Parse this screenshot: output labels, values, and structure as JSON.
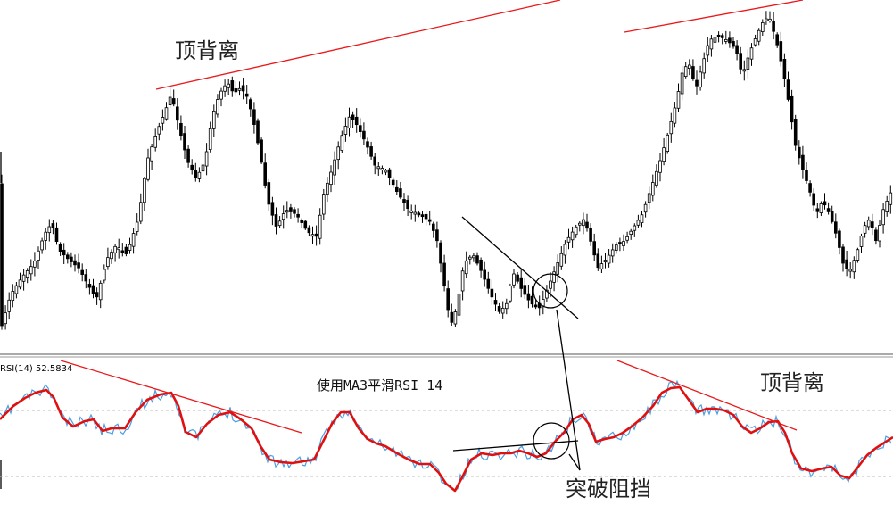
{
  "labels": {
    "price_divergence": "顶背离",
    "rsi_divergence": "顶背离",
    "breakout": "突破阻挡",
    "rsi_panel_title": "使用MA3平滑RSI 14",
    "rsi_indicator": "RSI(14) 52.5834"
  },
  "colors": {
    "background": "#ffffff",
    "candle": "#000000",
    "divergence_line": "#e8191b",
    "rsi_line": "#4a9ee0",
    "rsi_ma_line": "#e11010",
    "separator": "#555555",
    "level_line": "#bbbbbb",
    "annotation": "#000000"
  },
  "chart_data": [
    {
      "type": "candlestick",
      "title": "",
      "ohlc": [],
      "close_path": [
        [
          0,
          372
        ],
        [
          12,
          330
        ],
        [
          25,
          310
        ],
        [
          38,
          295
        ],
        [
          50,
          262
        ],
        [
          58,
          250
        ],
        [
          66,
          280
        ],
        [
          78,
          292
        ],
        [
          88,
          300
        ],
        [
          98,
          318
        ],
        [
          108,
          335
        ],
        [
          120,
          290
        ],
        [
          130,
          275
        ],
        [
          142,
          285
        ],
        [
          155,
          245
        ],
        [
          165,
          180
        ],
        [
          175,
          150
        ],
        [
          185,
          125
        ],
        [
          192,
          105
        ],
        [
          200,
          140
        ],
        [
          210,
          180
        ],
        [
          220,
          200
        ],
        [
          230,
          180
        ],
        [
          238,
          130
        ],
        [
          246,
          105
        ],
        [
          255,
          92
        ],
        [
          262,
          105
        ],
        [
          270,
          98
        ],
        [
          278,
          110
        ],
        [
          285,
          140
        ],
        [
          292,
          175
        ],
        [
          300,
          225
        ],
        [
          310,
          255
        ],
        [
          320,
          235
        ],
        [
          332,
          240
        ],
        [
          345,
          260
        ],
        [
          355,
          265
        ],
        [
          362,
          220
        ],
        [
          372,
          190
        ],
        [
          382,
          155
        ],
        [
          392,
          130
        ],
        [
          400,
          140
        ],
        [
          410,
          160
        ],
        [
          420,
          185
        ],
        [
          432,
          190
        ],
        [
          445,
          215
        ],
        [
          458,
          235
        ],
        [
          470,
          240
        ],
        [
          482,
          248
        ],
        [
          490,
          270
        ],
        [
          498,
          320
        ],
        [
          505,
          365
        ],
        [
          512,
          345
        ],
        [
          520,
          295
        ],
        [
          530,
          285
        ],
        [
          540,
          305
        ],
        [
          550,
          330
        ],
        [
          560,
          350
        ],
        [
          568,
          340
        ],
        [
          575,
          305
        ],
        [
          585,
          325
        ],
        [
          595,
          340
        ],
        [
          605,
          345
        ],
        [
          615,
          320
        ],
        [
          625,
          295
        ],
        [
          635,
          270
        ],
        [
          645,
          255
        ],
        [
          655,
          245
        ],
        [
          662,
          270
        ],
        [
          670,
          300
        ],
        [
          680,
          290
        ],
        [
          690,
          275
        ],
        [
          700,
          270
        ],
        [
          710,
          255
        ],
        [
          720,
          240
        ],
        [
          730,
          210
        ],
        [
          740,
          180
        ],
        [
          750,
          145
        ],
        [
          758,
          115
        ],
        [
          765,
          80
        ],
        [
          772,
          70
        ],
        [
          780,
          100
        ],
        [
          788,
          70
        ],
        [
          795,
          45
        ],
        [
          805,
          40
        ],
        [
          815,
          45
        ],
        [
          825,
          55
        ],
        [
          832,
          85
        ],
        [
          840,
          60
        ],
        [
          848,
          40
        ],
        [
          855,
          25
        ],
        [
          862,
          18
        ],
        [
          870,
          45
        ],
        [
          878,
          80
        ],
        [
          885,
          120
        ],
        [
          892,
          165
        ],
        [
          900,
          190
        ],
        [
          908,
          215
        ],
        [
          915,
          240
        ],
        [
          922,
          225
        ],
        [
          930,
          240
        ],
        [
          938,
          265
        ],
        [
          945,
          295
        ],
        [
          952,
          305
        ],
        [
          960,
          285
        ],
        [
          968,
          255
        ],
        [
          975,
          245
        ],
        [
          982,
          270
        ],
        [
          990,
          235
        ],
        [
          1001,
          210
        ]
      ],
      "resistance_lines": [
        {
          "name": "price_top_divergence",
          "from": [
            175,
            100
          ],
          "to": [
            628,
            0
          ]
        },
        {
          "name": "price_top_divergence_2",
          "from": [
            700,
            36
          ],
          "to": [
            900,
            0
          ]
        },
        {
          "name": "breakout_trendline",
          "from": [
            518,
            243
          ],
          "to": [
            648,
            357
          ]
        }
      ]
    },
    {
      "type": "line",
      "title": "使用MA3平滑RSI 14",
      "indicator": "RSI(14)",
      "last_value": 52.5834,
      "levels": [
        70,
        30
      ],
      "series": [
        {
          "values": [
            [
              0,
              470
            ],
            [
              15,
              455
            ],
            [
              28,
              446
            ],
            [
              40,
              440
            ],
            [
              52,
              437
            ],
            [
              60,
              445
            ],
            [
              70,
              468
            ],
            [
              82,
              478
            ],
            [
              95,
              472
            ],
            [
              105,
              470
            ],
            [
              115,
              483
            ],
            [
              125,
              480
            ],
            [
              140,
              480
            ],
            [
              152,
              462
            ],
            [
              165,
              448
            ],
            [
              180,
              442
            ],
            [
              192,
              440
            ],
            [
              200,
              455
            ],
            [
              208,
              484
            ],
            [
              220,
              490
            ],
            [
              232,
              475
            ],
            [
              245,
              465
            ],
            [
              258,
              462
            ],
            [
              270,
              470
            ],
            [
              282,
              480
            ],
            [
              292,
              500
            ],
            [
              302,
              515
            ],
            [
              315,
              518
            ],
            [
              328,
              519
            ],
            [
              340,
              517
            ],
            [
              352,
              515
            ],
            [
              362,
              495
            ],
            [
              372,
              475
            ],
            [
              382,
              462
            ],
            [
              392,
              462
            ],
            [
              402,
              480
            ],
            [
              412,
              492
            ],
            [
              422,
              497
            ],
            [
              432,
              500
            ],
            [
              445,
              508
            ],
            [
              458,
              515
            ],
            [
              470,
              520
            ],
            [
              482,
              520
            ],
            [
              492,
              530
            ],
            [
              500,
              542
            ],
            [
              510,
              550
            ],
            [
              518,
              535
            ],
            [
              528,
              515
            ],
            [
              540,
              508
            ],
            [
              552,
              510
            ],
            [
              562,
              508
            ],
            [
              572,
              508
            ],
            [
              582,
              505
            ],
            [
              592,
              508
            ],
            [
              602,
              512
            ],
            [
              612,
              508
            ],
            [
              622,
              495
            ],
            [
              632,
              485
            ],
            [
              642,
              470
            ],
            [
              652,
              465
            ],
            [
              660,
              475
            ],
            [
              668,
              495
            ],
            [
              678,
              492
            ],
            [
              688,
              490
            ],
            [
              698,
              485
            ],
            [
              708,
              478
            ],
            [
              720,
              468
            ],
            [
              732,
              455
            ],
            [
              742,
              440
            ],
            [
              752,
              435
            ],
            [
              762,
              434
            ],
            [
              772,
              448
            ],
            [
              782,
              462
            ],
            [
              792,
              458
            ],
            [
              802,
              458
            ],
            [
              812,
              460
            ],
            [
              822,
              465
            ],
            [
              832,
              478
            ],
            [
              842,
              485
            ],
            [
              852,
              480
            ],
            [
              862,
              473
            ],
            [
              872,
              472
            ],
            [
              880,
              485
            ],
            [
              888,
              508
            ],
            [
              898,
              525
            ],
            [
              910,
              528
            ],
            [
              922,
              525
            ],
            [
              932,
              523
            ],
            [
              942,
              533
            ],
            [
              952,
              536
            ],
            [
              962,
              523
            ],
            [
              972,
              510
            ],
            [
              982,
              502
            ],
            [
              1001,
              490
            ]
          ]
        }
      ],
      "resistance_lines": [
        {
          "name": "rsi_top_divergence",
          "from": [
            68,
            404
          ],
          "to": [
            338,
            485
          ]
        },
        {
          "name": "rsi_top_divergence_2",
          "from": [
            692,
            404
          ],
          "to": [
            893,
            482
          ]
        },
        {
          "name": "rsi_breakout_line",
          "from": [
            508,
            505
          ],
          "to": [
            648,
            494
          ]
        }
      ],
      "markers": [
        {
          "name": "price_breakout_circle",
          "cx": 617,
          "cy": 326,
          "r": 19
        },
        {
          "name": "rsi_breakout_circle",
          "cx": 618,
          "cy": 494,
          "r": 20
        }
      ],
      "arrows": [
        {
          "name": "arrow_from_price",
          "from": [
            624,
            347
          ],
          "to": [
            650,
            527
          ]
        },
        {
          "name": "arrow_from_rsi",
          "from": [
            638,
            509
          ],
          "to": [
            650,
            527
          ]
        }
      ]
    }
  ]
}
